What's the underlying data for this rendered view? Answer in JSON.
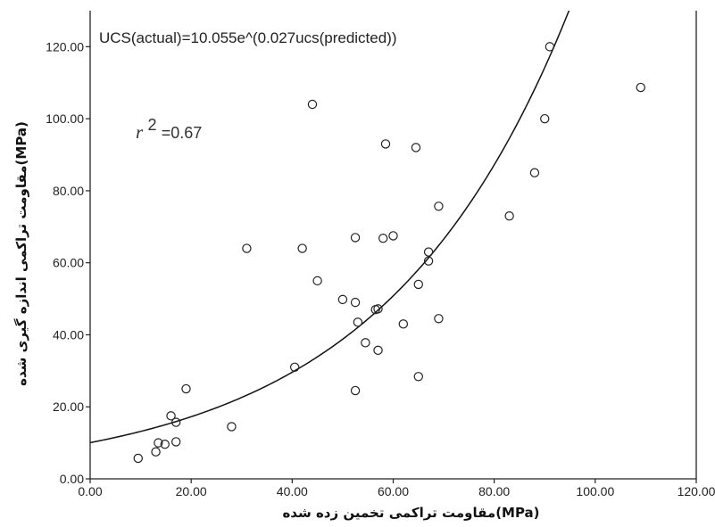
{
  "chart_data": {
    "type": "scatter",
    "title": "",
    "xlabel": "مقاومت تراکمی تخمین زده شده(MPa)",
    "ylabel": "مقاومت تراکمی اندازه گیری شده(MPa)",
    "xlim": [
      0,
      120
    ],
    "ylim": [
      0,
      130
    ],
    "x_ticks": [
      "0.00",
      "20.00",
      "40.00",
      "60.00",
      "80.00",
      "100.00",
      "120.00"
    ],
    "y_ticks": [
      "0.00",
      "20.00",
      "40.00",
      "60.00",
      "80.00",
      "100.00",
      "120.00"
    ],
    "grid": false,
    "annotations": {
      "equation": "UCS(actual)=10.055e^(0.027ucs(predicted))",
      "r2_symbol": "r",
      "r2_exponent": "2",
      "r2_value": "=0.67"
    },
    "fit": {
      "a": 10.055,
      "b": 0.027,
      "form": "exponential"
    },
    "points": [
      [
        9.5,
        5.7
      ],
      [
        13,
        7.5
      ],
      [
        13.5,
        10
      ],
      [
        14.8,
        9.6
      ],
      [
        17,
        10.3
      ],
      [
        16,
        17.5
      ],
      [
        17,
        15.7
      ],
      [
        19,
        25
      ],
      [
        28,
        14.5
      ],
      [
        31,
        64
      ],
      [
        40.5,
        31
      ],
      [
        42,
        64
      ],
      [
        44,
        104
      ],
      [
        45,
        55
      ],
      [
        50,
        49.8
      ],
      [
        52.5,
        49
      ],
      [
        52.5,
        67
      ],
      [
        53,
        43.5
      ],
      [
        52.5,
        24.5
      ],
      [
        54.5,
        37.8
      ],
      [
        56.5,
        47
      ],
      [
        57,
        47.2
      ],
      [
        57,
        35.7
      ],
      [
        58,
        66.8
      ],
      [
        58.5,
        93
      ],
      [
        60,
        67.5
      ],
      [
        62,
        43
      ],
      [
        64.5,
        92
      ],
      [
        65,
        54
      ],
      [
        65,
        28.4
      ],
      [
        67,
        63
      ],
      [
        67,
        60.5
      ],
      [
        69,
        44.5
      ],
      [
        69,
        75.7
      ],
      [
        83,
        73
      ],
      [
        88,
        85
      ],
      [
        90,
        100
      ],
      [
        91,
        120
      ],
      [
        109,
        108.7
      ]
    ]
  }
}
